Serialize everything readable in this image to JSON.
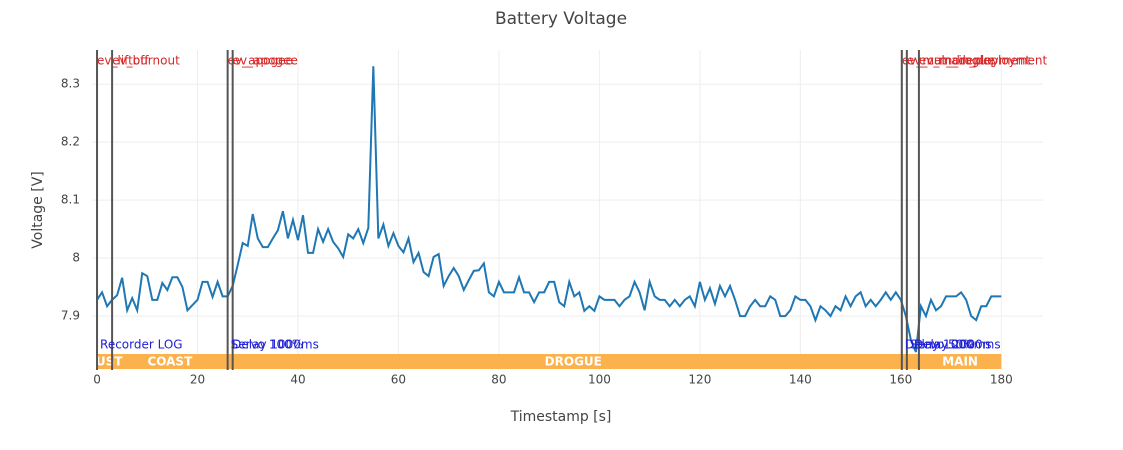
{
  "chart_data": {
    "type": "line",
    "title": "Battery Voltage",
    "xlabel": "Timestamp [s]",
    "ylabel": "Voltage [V]",
    "color": "#1f77b4",
    "grid": true,
    "xlim": [
      -1,
      188.3
    ],
    "ylim": [
      7.807,
      8.359
    ],
    "xticks": [
      0,
      20,
      40,
      60,
      80,
      100,
      120,
      140,
      160,
      180
    ],
    "yticks": [
      7.9,
      8,
      8.1,
      8.2,
      8.3
    ],
    "x": [
      0,
      1,
      2,
      3,
      4,
      5,
      6,
      7,
      8,
      9,
      10,
      11,
      12,
      13,
      14,
      15,
      16,
      17,
      18,
      19,
      20,
      21,
      22,
      23,
      24,
      25,
      26,
      27,
      28,
      29,
      30,
      31,
      32,
      33,
      34,
      35,
      36,
      37,
      38,
      39,
      40,
      41,
      42,
      43,
      44,
      45,
      46,
      47,
      48,
      49,
      50,
      51,
      52,
      53,
      54,
      55,
      56,
      57,
      58,
      59,
      60,
      61,
      62,
      63,
      64,
      65,
      66,
      67,
      68,
      69,
      70,
      71,
      72,
      73,
      74,
      75,
      76,
      77,
      78,
      79,
      80,
      81,
      82,
      83,
      84,
      85,
      86,
      87,
      88,
      89,
      90,
      91,
      92,
      93,
      94,
      95,
      96,
      97,
      98,
      99,
      100,
      101,
      102,
      103,
      104,
      105,
      106,
      107,
      108,
      109,
      110,
      111,
      112,
      113,
      114,
      115,
      116,
      117,
      118,
      119,
      120,
      121,
      122,
      123,
      124,
      125,
      126,
      127,
      128,
      129,
      130,
      131,
      132,
      133,
      134,
      135,
      136,
      137,
      138,
      139,
      140,
      141,
      142,
      143,
      144,
      145,
      146,
      147,
      148,
      149,
      150,
      151,
      152,
      153,
      154,
      155,
      156,
      157,
      158,
      159,
      160,
      161,
      162,
      163,
      164,
      165,
      166,
      167,
      168,
      169,
      170,
      171,
      172,
      173,
      174,
      175,
      176,
      177,
      178,
      179,
      180
    ],
    "values": [
      7.928,
      7.941,
      7.917,
      7.928,
      7.936,
      7.966,
      7.91,
      7.931,
      7.91,
      7.974,
      7.969,
      7.928,
      7.928,
      7.957,
      7.945,
      7.967,
      7.967,
      7.95,
      7.91,
      7.919,
      7.928,
      7.959,
      7.959,
      7.933,
      7.959,
      7.934,
      7.934,
      7.952,
      7.988,
      8.026,
      8.021,
      8.076,
      8.034,
      8.019,
      8.019,
      8.034,
      8.048,
      8.081,
      8.034,
      8.066,
      8.031,
      8.074,
      8.009,
      8.009,
      8.05,
      8.028,
      8.05,
      8.028,
      8.017,
      8.002,
      8.041,
      8.034,
      8.05,
      8.026,
      8.052,
      8.331,
      8.034,
      8.058,
      8.021,
      8.043,
      8.021,
      8.01,
      8.034,
      7.993,
      8.009,
      7.976,
      7.969,
      8.002,
      8.007,
      7.952,
      7.969,
      7.983,
      7.969,
      7.945,
      7.962,
      7.978,
      7.979,
      7.991,
      7.941,
      7.934,
      7.959,
      7.941,
      7.941,
      7.941,
      7.967,
      7.941,
      7.941,
      7.924,
      7.941,
      7.941,
      7.959,
      7.959,
      7.924,
      7.917,
      7.959,
      7.934,
      7.941,
      7.909,
      7.917,
      7.909,
      7.934,
      7.928,
      7.928,
      7.928,
      7.917,
      7.928,
      7.934,
      7.959,
      7.941,
      7.91,
      7.959,
      7.934,
      7.928,
      7.928,
      7.917,
      7.928,
      7.917,
      7.928,
      7.934,
      7.917,
      7.959,
      7.928,
      7.948,
      7.921,
      7.952,
      7.934,
      7.952,
      7.928,
      7.9,
      7.9,
      7.917,
      7.928,
      7.917,
      7.917,
      7.934,
      7.928,
      7.9,
      7.9,
      7.91,
      7.934,
      7.928,
      7.928,
      7.917,
      7.893,
      7.917,
      7.91,
      7.9,
      7.917,
      7.91,
      7.934,
      7.917,
      7.934,
      7.941,
      7.917,
      7.928,
      7.917,
      7.928,
      7.941,
      7.928,
      7.941,
      7.928,
      7.9,
      7.859,
      7.838,
      7.917,
      7.9,
      7.928,
      7.91,
      7.917,
      7.934,
      7.934,
      7.934,
      7.941,
      7.928,
      7.9,
      7.893,
      7.917,
      7.917,
      7.934,
      7.934,
      7.934
    ],
    "event_color": "#555555",
    "events": [
      {
        "x": 0,
        "label": "ev_liftoff"
      },
      {
        "x": 3,
        "label": "ev_burnout"
      },
      {
        "x": 26,
        "label": "ev_apogee"
      },
      {
        "x": 27,
        "label": "ev_apogee"
      },
      {
        "x": 160.2,
        "label": "ev_main_deployment"
      },
      {
        "x": 161.2,
        "label": "ev_cut_drogue"
      },
      {
        "x": 163.6,
        "label": "ev_main_deployment"
      }
    ],
    "annotations": [
      {
        "x": 0,
        "label": "Recorder LOG"
      },
      {
        "x": 26,
        "label": "Servo 100%"
      },
      {
        "x": 26.3,
        "label": "Delay 1000ms"
      },
      {
        "x": 160.2,
        "label": "Delay 1000ms"
      },
      {
        "x": 161.2,
        "label": "Servo 50%"
      },
      {
        "x": 162,
        "label": "Delay 2000ms"
      }
    ],
    "phase_color": "#fbb24d",
    "phases": [
      {
        "start": 0,
        "end": 3,
        "label": "RUST"
      },
      {
        "start": 3,
        "end": 26,
        "label": "COAST"
      },
      {
        "start": 26,
        "end": 163.6,
        "label": "DROGUE"
      },
      {
        "start": 163.6,
        "end": 180,
        "label": "MAIN"
      }
    ]
  }
}
